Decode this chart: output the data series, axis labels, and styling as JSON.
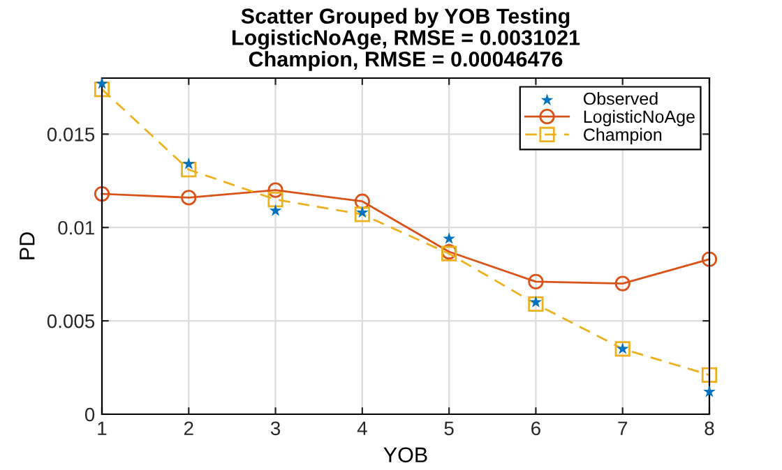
{
  "chart_data": {
    "type": "line",
    "title": "Scatter Grouped by YOB Testing\nLogisticNoAge, RMSE = 0.0031021\nChampion, RMSE = 0.00046476",
    "xlabel": "YOB",
    "ylabel": "PD",
    "x": [
      1,
      2,
      3,
      4,
      5,
      6,
      7,
      8
    ],
    "series": [
      {
        "name": "Observed",
        "type": "scatter",
        "color": "#0072bd",
        "marker": "star",
        "values": [
          0.0177,
          0.0134,
          0.0109,
          0.0108,
          0.0094,
          0.006,
          0.0035,
          0.0012
        ]
      },
      {
        "name": "LogisticNoAge",
        "color": "#d95319",
        "marker": "circle",
        "line_style": "solid",
        "values": [
          0.0118,
          0.0116,
          0.012,
          0.0114,
          0.0087,
          0.0071,
          0.007,
          0.0083
        ]
      },
      {
        "name": "Champion",
        "color": "#edb120",
        "marker": "square",
        "line_style": "dashed",
        "values": [
          0.0174,
          0.0131,
          0.0115,
          0.0107,
          0.0086,
          0.0059,
          0.0035,
          0.0021
        ]
      }
    ],
    "xlim": [
      1,
      8
    ],
    "xticks": [
      1,
      2,
      3,
      4,
      5,
      6,
      7,
      8
    ],
    "ylim": [
      0,
      0.018
    ],
    "yticks": [
      0,
      0.005,
      0.01,
      0.015
    ],
    "grid": true,
    "legend": "top right"
  }
}
